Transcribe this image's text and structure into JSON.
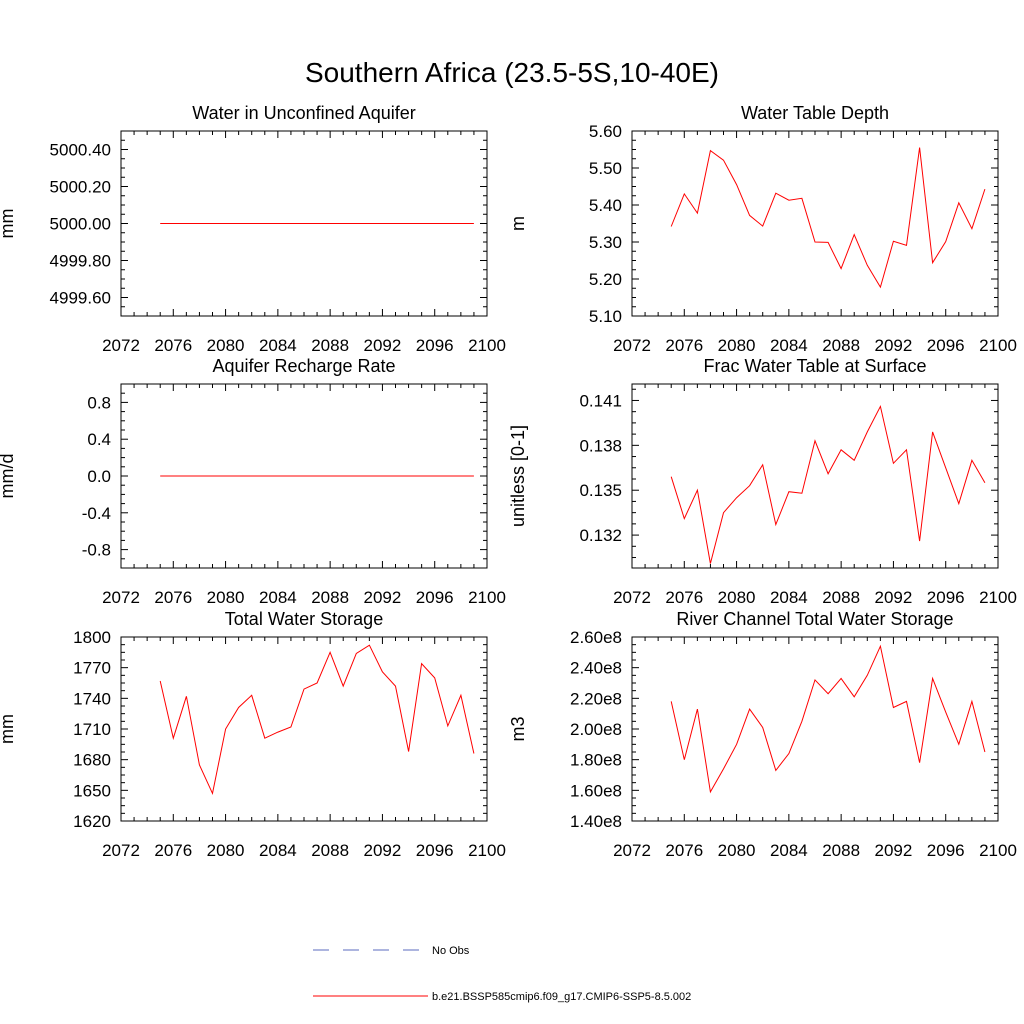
{
  "figure": {
    "title": "Southern Africa (23.5-5S,10-40E)",
    "line_color": "#ff0000",
    "obs_color": "#5b6bbf"
  },
  "legend": {
    "entries": [
      {
        "label": "No Obs",
        "style": "dashed",
        "color": "#5b6bbf"
      },
      {
        "label": "b.e21.BSSP585cmip6.f09_g17.CMIP6-SSP5-8.5.002",
        "style": "solid",
        "color": "#ff0000"
      }
    ]
  },
  "chart_data": [
    {
      "type": "line",
      "title": "Water in Unconfined Aquifer",
      "xlabel": "",
      "ylabel": "mm",
      "xlim": [
        2072,
        2100
      ],
      "xticks": [
        2072,
        2076,
        2080,
        2084,
        2088,
        2092,
        2096,
        2100
      ],
      "ylim": [
        4999.5,
        5000.5
      ],
      "yticks": [
        4999.6,
        4999.8,
        5000.0,
        5000.2,
        5000.4
      ],
      "ytick_labels": [
        "4999.60",
        "4999.80",
        "5000.00",
        "5000.20",
        "5000.40"
      ],
      "x": [
        2075,
        2076,
        2077,
        2078,
        2079,
        2080,
        2081,
        2082,
        2083,
        2084,
        2085,
        2086,
        2087,
        2088,
        2089,
        2090,
        2091,
        2092,
        2093,
        2094,
        2095,
        2096,
        2097,
        2098,
        2099
      ],
      "y": [
        5000,
        5000,
        5000,
        5000,
        5000,
        5000,
        5000,
        5000,
        5000,
        5000,
        5000,
        5000,
        5000,
        5000,
        5000,
        5000,
        5000,
        5000,
        5000,
        5000,
        5000,
        5000,
        5000,
        5000,
        5000
      ]
    },
    {
      "type": "line",
      "title": "Water Table Depth",
      "xlabel": "",
      "ylabel": "m",
      "xlim": [
        2072,
        2100
      ],
      "xticks": [
        2072,
        2076,
        2080,
        2084,
        2088,
        2092,
        2096,
        2100
      ],
      "ylim": [
        5.1,
        5.6
      ],
      "yticks": [
        5.1,
        5.2,
        5.3,
        5.4,
        5.5,
        5.6
      ],
      "ytick_labels": [
        "5.10",
        "5.20",
        "5.30",
        "5.40",
        "5.50",
        "5.60"
      ],
      "x": [
        2075,
        2076,
        2077,
        2078,
        2079,
        2080,
        2081,
        2082,
        2083,
        2084,
        2085,
        2086,
        2087,
        2088,
        2089,
        2090,
        2091,
        2092,
        2093,
        2094,
        2095,
        2096,
        2097,
        2098,
        2099
      ],
      "y": [
        5.342,
        5.43,
        5.378,
        5.547,
        5.521,
        5.455,
        5.372,
        5.343,
        5.432,
        5.413,
        5.418,
        5.3,
        5.299,
        5.228,
        5.32,
        5.237,
        5.178,
        5.302,
        5.291,
        5.555,
        5.244,
        5.301,
        5.406,
        5.336,
        5.443
      ]
    },
    {
      "type": "line",
      "title": "Aquifer Recharge Rate",
      "xlabel": "",
      "ylabel": "mm/d",
      "xlim": [
        2072,
        2100
      ],
      "xticks": [
        2072,
        2076,
        2080,
        2084,
        2088,
        2092,
        2096,
        2100
      ],
      "ylim": [
        -1.0,
        1.0
      ],
      "yticks": [
        -0.8,
        -0.4,
        0.0,
        0.4,
        0.8
      ],
      "ytick_labels": [
        "-0.8",
        "-0.4",
        "0.0",
        "0.4",
        "0.8"
      ],
      "x": [
        2075,
        2076,
        2077,
        2078,
        2079,
        2080,
        2081,
        2082,
        2083,
        2084,
        2085,
        2086,
        2087,
        2088,
        2089,
        2090,
        2091,
        2092,
        2093,
        2094,
        2095,
        2096,
        2097,
        2098,
        2099
      ],
      "y": [
        0,
        0,
        0,
        0,
        0,
        0,
        0,
        0,
        0,
        0,
        0,
        0,
        0,
        0,
        0,
        0,
        0,
        0,
        0,
        0,
        0,
        0,
        0,
        0,
        0
      ]
    },
    {
      "type": "line",
      "title": "Frac Water Table at Surface",
      "xlabel": "",
      "ylabel": "unitless [0-1]",
      "xlim": [
        2072,
        2100
      ],
      "xticks": [
        2072,
        2076,
        2080,
        2084,
        2088,
        2092,
        2096,
        2100
      ],
      "ylim": [
        0.1298,
        0.1421
      ],
      "yticks": [
        0.132,
        0.135,
        0.138,
        0.141
      ],
      "ytick_labels": [
        "0.132",
        "0.135",
        "0.138",
        "0.141"
      ],
      "x": [
        2075,
        2076,
        2077,
        2078,
        2079,
        2080,
        2081,
        2082,
        2083,
        2084,
        2085,
        2086,
        2087,
        2088,
        2089,
        2090,
        2091,
        2092,
        2093,
        2094,
        2095,
        2096,
        2097,
        2098,
        2099
      ],
      "y": [
        0.1359,
        0.1331,
        0.135,
        0.1301,
        0.1335,
        0.1345,
        0.1353,
        0.1367,
        0.1327,
        0.1349,
        0.1348,
        0.1383,
        0.1361,
        0.1377,
        0.137,
        0.1389,
        0.1406,
        0.1368,
        0.1377,
        0.1316,
        0.1389,
        0.1365,
        0.1341,
        0.137,
        0.1355
      ]
    },
    {
      "type": "line",
      "title": "Total Water Storage",
      "xlabel": "",
      "ylabel": "mm",
      "xlim": [
        2072,
        2100
      ],
      "xticks": [
        2072,
        2076,
        2080,
        2084,
        2088,
        2092,
        2096,
        2100
      ],
      "ylim": [
        1620,
        1800
      ],
      "yticks": [
        1620,
        1650,
        1680,
        1710,
        1740,
        1770,
        1800
      ],
      "ytick_labels": [
        "1620",
        "1650",
        "1680",
        "1710",
        "1740",
        "1770",
        "1800"
      ],
      "x": [
        2075,
        2076,
        2077,
        2078,
        2079,
        2080,
        2081,
        2082,
        2083,
        2084,
        2085,
        2086,
        2087,
        2088,
        2089,
        2090,
        2091,
        2092,
        2093,
        2094,
        2095,
        2096,
        2097,
        2098,
        2099
      ],
      "y": [
        1757,
        1701,
        1742,
        1675,
        1647,
        1710,
        1731,
        1743,
        1701,
        1707,
        1712,
        1749,
        1755,
        1785,
        1752,
        1784,
        1792,
        1766,
        1752,
        1688,
        1774,
        1760,
        1713,
        1743,
        1686
      ]
    },
    {
      "type": "line",
      "title": "River Channel Total Water Storage",
      "xlabel": "",
      "ylabel": "m3",
      "xlim": [
        2072,
        2100
      ],
      "xticks": [
        2072,
        2076,
        2080,
        2084,
        2088,
        2092,
        2096,
        2100
      ],
      "ylim": [
        140000000,
        260000000
      ],
      "yticks": [
        140000000,
        160000000,
        180000000,
        200000000,
        220000000,
        240000000,
        260000000
      ],
      "ytick_labels": [
        "1.40e8",
        "1.60e8",
        "1.80e8",
        "2.00e8",
        "2.20e8",
        "2.40e8",
        "2.60e8"
      ],
      "x": [
        2075,
        2076,
        2077,
        2078,
        2079,
        2080,
        2081,
        2082,
        2083,
        2084,
        2085,
        2086,
        2087,
        2088,
        2089,
        2090,
        2091,
        2092,
        2093,
        2094,
        2095,
        2096,
        2097,
        2098,
        2099
      ],
      "y": [
        218000000,
        180000000,
        213000000,
        159000000,
        174000000,
        190000000,
        213000000,
        201000000,
        173000000,
        184000000,
        205000000,
        232000000,
        223000000,
        233000000,
        221000000,
        235000000,
        254000000,
        214000000,
        218000000,
        178000000,
        233000000,
        211000000,
        190000000,
        218000000,
        185000000
      ]
    }
  ]
}
